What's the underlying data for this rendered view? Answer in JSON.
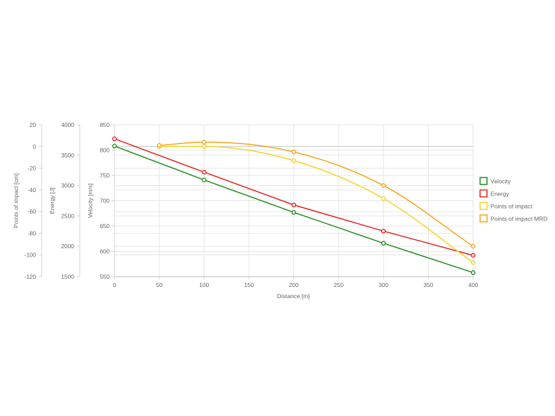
{
  "chart_data": {
    "type": "line",
    "xlabel": "Distance [m]",
    "xlim": [
      0,
      400
    ],
    "xticks": [
      0,
      50,
      100,
      150,
      200,
      250,
      300,
      350,
      400
    ],
    "grid": true,
    "legend_position": "right",
    "axes": [
      {
        "id": "poi",
        "label": "Points of impact [cm]",
        "ylim": [
          -120,
          20
        ],
        "ticks": [
          20,
          0,
          -20,
          -40,
          -60,
          -80,
          -100,
          -120
        ]
      },
      {
        "id": "energy",
        "label": "Energy [J]",
        "ylim": [
          1500,
          4000
        ],
        "ticks": [
          4000,
          3500,
          3000,
          2500,
          2000,
          1500
        ]
      },
      {
        "id": "velocity",
        "label": "Velocity [m/s]",
        "ylim": [
          550,
          850
        ],
        "ticks": [
          850,
          800,
          750,
          700,
          650,
          600,
          550
        ]
      }
    ],
    "series": [
      {
        "name": "Velocity",
        "axis": "velocity",
        "color": "#1e8a1e",
        "curved": false,
        "points": [
          [
            0,
            808
          ],
          [
            100,
            741
          ],
          [
            200,
            677
          ],
          [
            300,
            616
          ],
          [
            400,
            558
          ]
        ]
      },
      {
        "name": "Energy",
        "axis": "energy",
        "color": "#e52020",
        "curved": false,
        "points": [
          [
            0,
            3770
          ],
          [
            100,
            3220
          ],
          [
            200,
            2680
          ],
          [
            300,
            2250
          ],
          [
            400,
            1850
          ]
        ]
      },
      {
        "name": "Points of impact",
        "axis": "poi",
        "color": "#f5d327",
        "curved": true,
        "points": [
          [
            50,
            0
          ],
          [
            100,
            0
          ],
          [
            200,
            -13
          ],
          [
            300,
            -48
          ],
          [
            400,
            -107
          ]
        ]
      },
      {
        "name": "Points of impact MRD",
        "axis": "poi",
        "color": "#f5a418",
        "curved": true,
        "points": [
          [
            50,
            1
          ],
          [
            100,
            4
          ],
          [
            200,
            -5
          ],
          [
            300,
            -36
          ],
          [
            400,
            -92
          ]
        ]
      }
    ]
  }
}
